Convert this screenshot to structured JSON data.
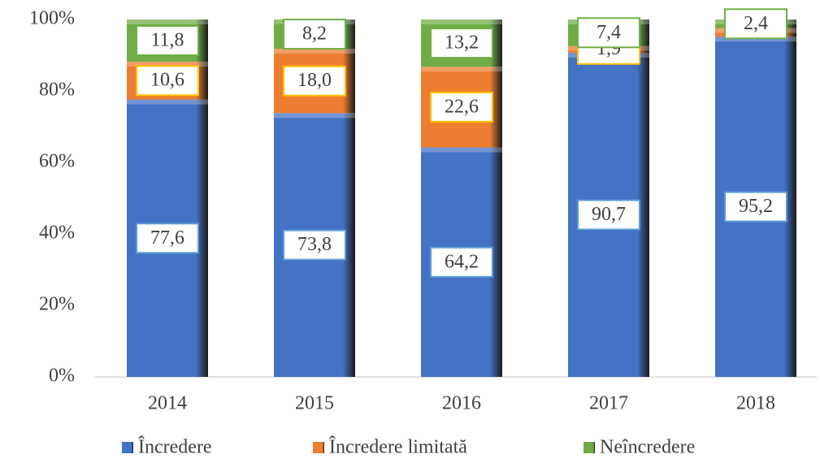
{
  "chart_data": {
    "type": "stacked_bar",
    "categories": [
      "2014",
      "2015",
      "2016",
      "2017",
      "2018"
    ],
    "series": [
      {
        "name": "Încredere",
        "color": "#4472c4",
        "label_border": "#5b9bd5",
        "values": [
          77.6,
          73.8,
          64.2,
          90.7,
          95.2
        ],
        "value_labels": [
          "77,6",
          "73,8",
          "64,2",
          "90,7",
          "95,2"
        ]
      },
      {
        "name": "Încredere limitată",
        "color": "#ed7d31",
        "label_border": "#ffc000",
        "values": [
          10.6,
          18.0,
          22.6,
          1.9,
          2.4
        ],
        "value_labels": [
          "10,6",
          "18,0",
          "22,6",
          "1,9",
          null
        ]
      },
      {
        "name": "Neîncredere",
        "color": "#70ad47",
        "label_border": "#70ad47",
        "values": [
          11.8,
          8.2,
          13.2,
          7.4,
          2.4
        ],
        "value_labels": [
          "11,8",
          "8,2",
          "13,2",
          "7,4",
          "2,4"
        ]
      }
    ],
    "ylim": [
      0,
      100
    ],
    "yticks": [
      {
        "value": 0,
        "label": "0%"
      },
      {
        "value": 20,
        "label": "20%"
      },
      {
        "value": 40,
        "label": "40%"
      },
      {
        "value": 60,
        "label": "60%"
      },
      {
        "value": 80,
        "label": "80%"
      },
      {
        "value": 100,
        "label": "100%"
      }
    ],
    "grid": false,
    "legend": "bottom"
  }
}
